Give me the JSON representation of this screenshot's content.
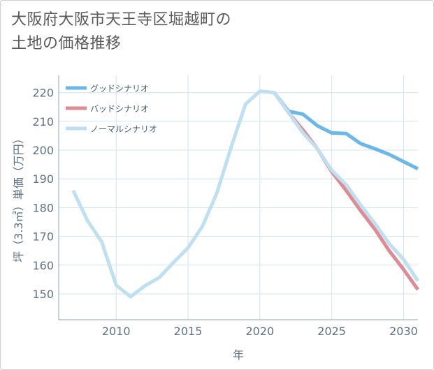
{
  "title_lines": [
    "大阪府大阪市天王寺区堀越町の",
    "土地の価格推移"
  ],
  "chart_data": {
    "type": "line",
    "title": "大阪府大阪市天王寺区堀越町の土地の価格推移",
    "xlabel": "年",
    "ylabel": "坪（3.3㎡）単価（万円）",
    "xlim": [
      2006,
      2031
    ],
    "ylim": [
      141,
      226
    ],
    "x_ticks": [
      2010,
      2015,
      2020,
      2025,
      2030
    ],
    "y_ticks": [
      150,
      160,
      170,
      180,
      190,
      200,
      210,
      220
    ],
    "grid": true,
    "legend_position": "top-left",
    "series": [
      {
        "name": "グッドシナリオ",
        "color": "#6bb7ea",
        "x": [
          2021,
          2022,
          2023,
          2024,
          2025,
          2026,
          2027,
          2028,
          2029,
          2030,
          2031
        ],
        "values": [
          220,
          213.5,
          212.5,
          208.5,
          206,
          205.8,
          202.3,
          200.5,
          198.5,
          196,
          193.5
        ]
      },
      {
        "name": "バッドシナリオ",
        "color": "#e08a93",
        "x": [
          2021,
          2022,
          2023,
          2024,
          2025,
          2026,
          2027,
          2028,
          2029,
          2030,
          2031
        ],
        "values": [
          220,
          213,
          207,
          200.5,
          192.5,
          186,
          179,
          172.5,
          165,
          158.5,
          151.5
        ]
      },
      {
        "name": "ノーマルシナリオ",
        "color": "#bfe0f0",
        "x": [
          2007,
          2008,
          2009,
          2010,
          2011,
          2012,
          2013,
          2014,
          2015,
          2016,
          2017,
          2018,
          2019,
          2020,
          2021,
          2022,
          2023,
          2024,
          2025,
          2026,
          2027,
          2028,
          2029,
          2030,
          2031
        ],
        "values": [
          186,
          175.5,
          168,
          153,
          149,
          152.8,
          155.7,
          161,
          166,
          173.5,
          185,
          201,
          216,
          220.5,
          220,
          213,
          206,
          200.5,
          193,
          188,
          181,
          174.5,
          167.5,
          162,
          154.5
        ]
      }
    ]
  }
}
